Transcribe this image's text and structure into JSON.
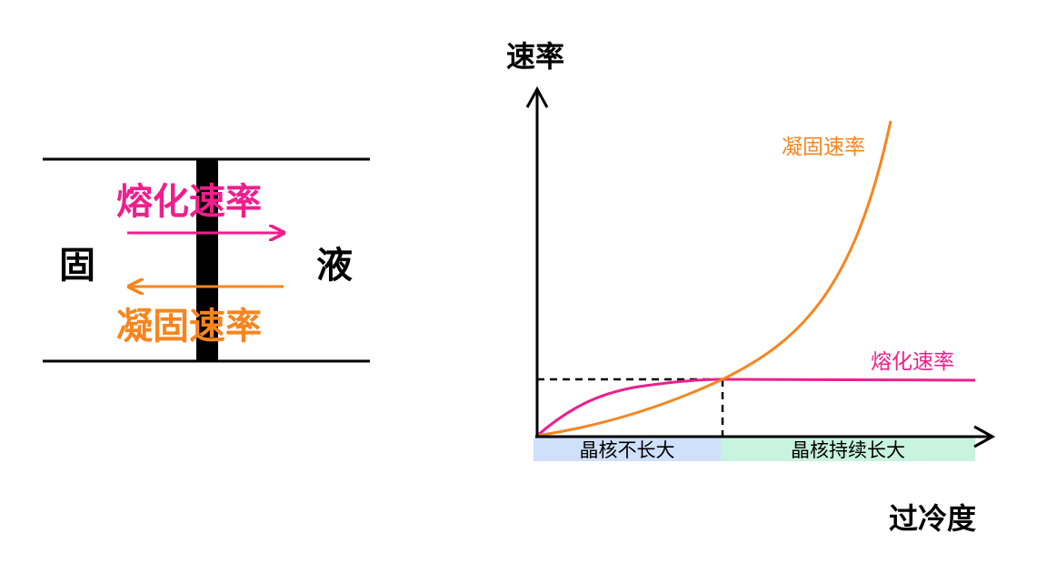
{
  "interface": {
    "solid_label": "固",
    "liquid_label": "液",
    "melting_rate_label": "熔化速率",
    "solidification_rate_label": "凝固速率"
  },
  "graph": {
    "y_axis_label": "速率",
    "x_axis_label": "过冷度",
    "solidification_curve_label": "凝固速率",
    "melting_curve_label": "熔化速率",
    "region_left_label": "晶核不长大",
    "region_right_label": "晶核持续长大"
  },
  "colors": {
    "melting": "#ee1f8c",
    "solidification": "#f7851e",
    "region_left": "#cfe0fb",
    "region_right": "#c7f3df",
    "ink": "#000000"
  }
}
